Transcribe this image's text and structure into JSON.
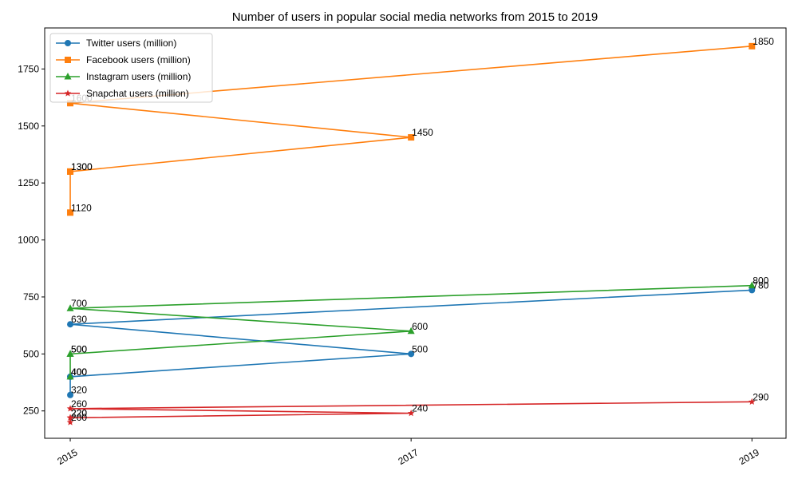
{
  "chart_data": {
    "type": "line",
    "title": "Number of users in popular social media networks from 2015 to 2019",
    "xlabel": "",
    "ylabel": "",
    "x_tick_labels": [
      "2015",
      "2017",
      "2019"
    ],
    "y_ticks": [
      250,
      500,
      750,
      1000,
      1250,
      1500,
      1750
    ],
    "xlim": [
      2014.85,
      2019.2
    ],
    "ylim": [
      130,
      1930
    ],
    "grid": false,
    "legend_position": "top-left",
    "series": [
      {
        "name": "Twitter users (million)",
        "color": "#1f77b4",
        "marker": "circle",
        "x": [
          2015,
          2015,
          2015,
          2017,
          2015,
          2019
        ],
        "y": [
          320,
          400,
          400,
          500,
          630,
          780
        ]
      },
      {
        "name": "Facebook users (million)",
        "color": "#ff7f0e",
        "marker": "square",
        "x": [
          2015,
          2015,
          2015,
          2017,
          2015,
          2019
        ],
        "y": [
          1120,
          1300,
          1300,
          1450,
          1600,
          1850
        ]
      },
      {
        "name": "Instagram users (million)",
        "color": "#2ca02c",
        "marker": "triangle",
        "x": [
          2015,
          2015,
          2015,
          2017,
          2015,
          2019
        ],
        "y": [
          400,
          500,
          500,
          600,
          700,
          800
        ]
      },
      {
        "name": "Snapchat users (million)",
        "color": "#d62728",
        "marker": "star",
        "x": [
          2015,
          2015,
          2015,
          2017,
          2015,
          2019
        ],
        "y": [
          200,
          220,
          220,
          240,
          260,
          290
        ]
      }
    ]
  }
}
